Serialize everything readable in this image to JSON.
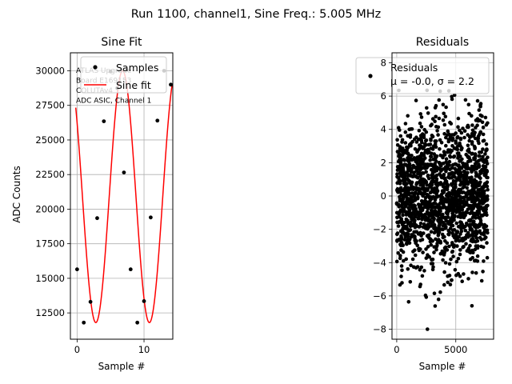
{
  "suptitle": "Run 1100, channel1, Sine Freq.: 5.005 MHz",
  "chart_data": [
    {
      "type": "line",
      "title": "Sine Fit",
      "xlabel": "Sample #",
      "ylabel": "ADC Counts",
      "xlim": [
        -1,
        14.3
      ],
      "ylim": [
        10600,
        31300
      ],
      "xticks": [
        0,
        10
      ],
      "yticks": [
        12500,
        15000,
        17500,
        20000,
        22500,
        25000,
        27500,
        30000
      ],
      "ytick_labels": [
        "12500",
        "15000",
        "17500",
        "20000",
        "22500",
        "25000",
        "27500",
        "30000"
      ],
      "grid": true,
      "legend_position": "upper-right",
      "annotation": [
        "ATLAS Upgrade",
        " Board E169153",
        "COLUTAv4",
        "ADC ASIC, Channel 1"
      ],
      "series": [
        {
          "name": "Samples",
          "kind": "scatter",
          "color": "#000000",
          "x": [
            0,
            1,
            2,
            3,
            4,
            5,
            6,
            7,
            8,
            9,
            10,
            11,
            12,
            13,
            14
          ],
          "y": [
            15650,
            11800,
            13300,
            19350,
            26350,
            29950,
            28750,
            22650,
            15650,
            11800,
            13350,
            19400,
            26400,
            30000,
            29000
          ]
        },
        {
          "name": "Sine fit",
          "kind": "line",
          "color": "#ff0000",
          "model": {
            "amplitude": 9100,
            "offset": 20900,
            "period": 8.0,
            "phase_deg": -216,
            "x_start": -0.2,
            "x_end": 14.2
          }
        }
      ]
    },
    {
      "type": "scatter",
      "title": "Residuals",
      "xlabel": "Sample #",
      "xlim": [
        -400,
        8200
      ],
      "ylim": [
        -8.6,
        8.6
      ],
      "xticks": [
        0,
        5000
      ],
      "yticks": [
        -8,
        -6,
        -4,
        -2,
        0,
        2,
        4,
        6,
        8
      ],
      "grid": true,
      "legend_position": "upper-right",
      "series": [
        {
          "name": "Residuals",
          "legend_label": "Residuals\nμ = -0.0, σ = 2.2",
          "color": "#000000",
          "n_points": 7700,
          "mean": 0.0,
          "std": 2.2,
          "x_range": [
            0,
            7700
          ]
        }
      ]
    }
  ]
}
